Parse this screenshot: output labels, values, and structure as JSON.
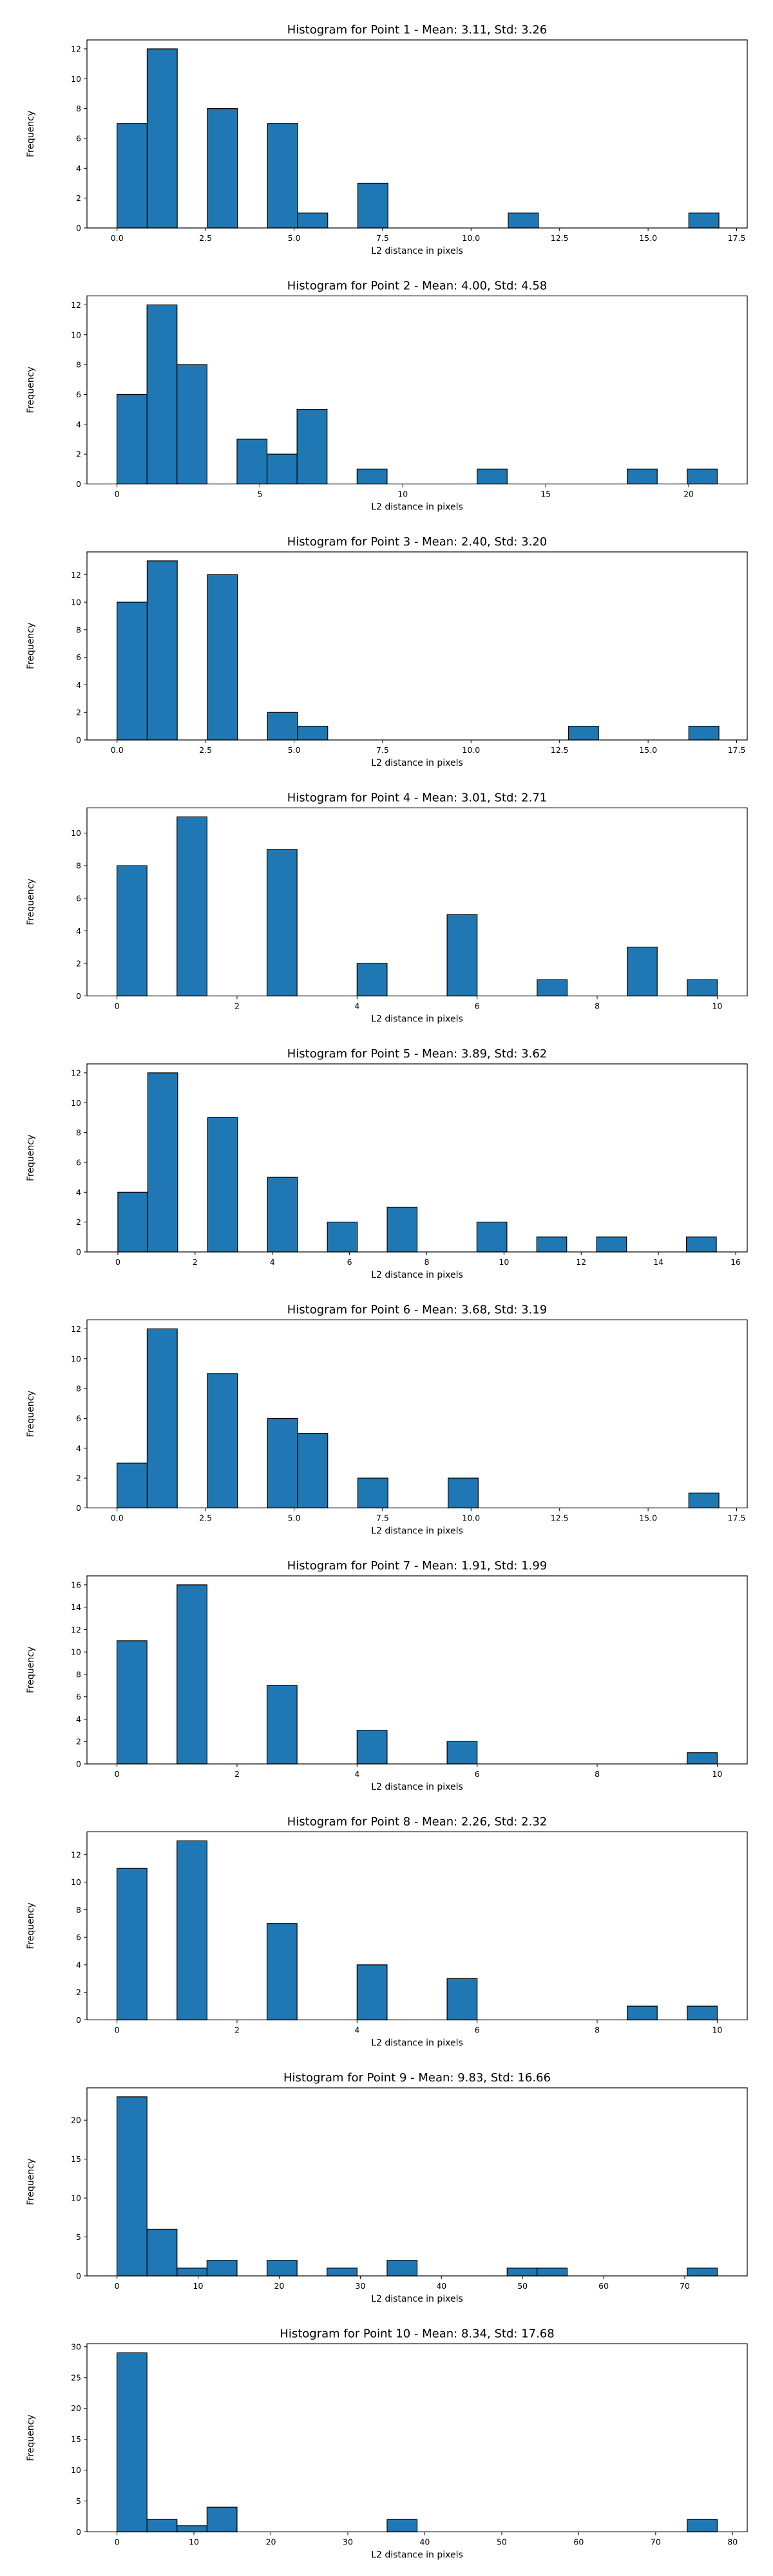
{
  "chart_data": [
    {
      "type": "bar",
      "title": "Histogram for Point 1 - Mean: 3.11, Std: 3.26",
      "xlabel": "L2 distance in pixels",
      "ylabel": "Frequency",
      "xlim": [
        -0.85,
        17.8
      ],
      "ylim": [
        0,
        12.6
      ],
      "xticks": [
        "0.0",
        "2.5",
        "5.0",
        "7.5",
        "10.0",
        "12.5",
        "15.0",
        "17.5"
      ],
      "xtick_values": [
        0,
        2.5,
        5,
        7.5,
        10,
        12.5,
        15,
        17.5
      ],
      "yticks": [
        0,
        2,
        4,
        6,
        8,
        10,
        12
      ],
      "bin_start": 0,
      "bin_width": 0.85,
      "counts": [
        7,
        12,
        0,
        8,
        0,
        7,
        1,
        0,
        3,
        0,
        0,
        0,
        0,
        1,
        0,
        0,
        0,
        0,
        0,
        1
      ]
    },
    {
      "type": "bar",
      "title": "Histogram for Point 2 - Mean: 4.00, Std: 4.58",
      "xlabel": "L2 distance in pixels",
      "ylabel": "Frequency",
      "xlim": [
        -1.05,
        22.05
      ],
      "ylim": [
        0,
        12.6
      ],
      "xticks": [
        "0",
        "5",
        "10",
        "15",
        "20"
      ],
      "xtick_values": [
        0,
        5,
        10,
        15,
        20
      ],
      "yticks": [
        0,
        2,
        4,
        6,
        8,
        10,
        12
      ],
      "bin_start": 0,
      "bin_width": 1.05,
      "counts": [
        6,
        12,
        8,
        0,
        3,
        2,
        5,
        0,
        1,
        0,
        0,
        0,
        1,
        0,
        0,
        0,
        0,
        1,
        0,
        1
      ]
    },
    {
      "type": "bar",
      "title": "Histogram for Point 3 - Mean: 2.40, Std: 3.20",
      "xlabel": "L2 distance in pixels",
      "ylabel": "Frequency",
      "xlim": [
        -0.85,
        17.8
      ],
      "ylim": [
        0,
        13.65
      ],
      "xticks": [
        "0.0",
        "2.5",
        "5.0",
        "7.5",
        "10.0",
        "12.5",
        "15.0",
        "17.5"
      ],
      "xtick_values": [
        0,
        2.5,
        5,
        7.5,
        10,
        12.5,
        15,
        17.5
      ],
      "yticks": [
        0,
        2,
        4,
        6,
        8,
        10,
        12
      ],
      "bin_start": 0,
      "bin_width": 0.85,
      "counts": [
        10,
        13,
        0,
        12,
        0,
        2,
        1,
        0,
        0,
        0,
        0,
        0,
        0,
        0,
        0,
        1,
        0,
        0,
        0,
        1
      ]
    },
    {
      "type": "bar",
      "title": "Histogram for Point 4 - Mean: 3.01, Std: 2.71",
      "xlabel": "L2 distance in pixels",
      "ylabel": "Frequency",
      "xlim": [
        -0.5,
        10.5
      ],
      "ylim": [
        0,
        11.55
      ],
      "xticks": [
        "0",
        "2",
        "4",
        "6",
        "8",
        "10"
      ],
      "xtick_values": [
        0,
        2,
        4,
        6,
        8,
        10
      ],
      "yticks": [
        0,
        2,
        4,
        6,
        8,
        10
      ],
      "bin_start": 0,
      "bin_width": 0.5,
      "counts": [
        8,
        0,
        11,
        0,
        0,
        9,
        0,
        0,
        2,
        0,
        0,
        5,
        0,
        0,
        1,
        0,
        0,
        3,
        0,
        1
      ]
    },
    {
      "type": "bar",
      "title": "Histogram for Point 5 - Mean: 3.89, Std: 3.62",
      "xlabel": "L2 distance in pixels",
      "ylabel": "Frequency",
      "xlim": [
        -0.8,
        16.3
      ],
      "ylim": [
        0,
        12.6
      ],
      "xticks": [
        "0",
        "2",
        "4",
        "6",
        "8",
        "10",
        "12",
        "14",
        "16"
      ],
      "xtick_values": [
        0,
        2,
        4,
        6,
        8,
        10,
        12,
        14,
        16
      ],
      "yticks": [
        0,
        2,
        4,
        6,
        8,
        10,
        12
      ],
      "bin_start": 0,
      "bin_width": 0.775,
      "counts": [
        4,
        12,
        0,
        9,
        0,
        5,
        0,
        2,
        0,
        3,
        0,
        0,
        2,
        0,
        1,
        0,
        1,
        0,
        0,
        1
      ]
    },
    {
      "type": "bar",
      "title": "Histogram for Point 6 - Mean: 3.68, Std: 3.19",
      "xlabel": "L2 distance in pixels",
      "ylabel": "Frequency",
      "xlim": [
        -0.85,
        17.8
      ],
      "ylim": [
        0,
        12.6
      ],
      "xticks": [
        "0.0",
        "2.5",
        "5.0",
        "7.5",
        "10.0",
        "12.5",
        "15.0",
        "17.5"
      ],
      "xtick_values": [
        0,
        2.5,
        5,
        7.5,
        10,
        12.5,
        15,
        17.5
      ],
      "yticks": [
        0,
        2,
        4,
        6,
        8,
        10,
        12
      ],
      "bin_start": 0,
      "bin_width": 0.85,
      "counts": [
        3,
        12,
        0,
        9,
        0,
        6,
        5,
        0,
        2,
        0,
        0,
        2,
        0,
        0,
        0,
        0,
        0,
        0,
        0,
        1
      ]
    },
    {
      "type": "bar",
      "title": "Histogram for Point 7 - Mean: 1.91, Std: 1.99",
      "xlabel": "L2 distance in pixels",
      "ylabel": "Frequency",
      "xlim": [
        -0.5,
        10.5
      ],
      "ylim": [
        0,
        16.8
      ],
      "xticks": [
        "0",
        "2",
        "4",
        "6",
        "8",
        "10"
      ],
      "xtick_values": [
        0,
        2,
        4,
        6,
        8,
        10
      ],
      "yticks": [
        0,
        2,
        4,
        6,
        8,
        10,
        12,
        14,
        16
      ],
      "bin_start": 0,
      "bin_width": 0.5,
      "counts": [
        11,
        0,
        16,
        0,
        0,
        7,
        0,
        0,
        3,
        0,
        0,
        2,
        0,
        0,
        0,
        0,
        0,
        0,
        0,
        1
      ]
    },
    {
      "type": "bar",
      "title": "Histogram for Point 8 - Mean: 2.26, Std: 2.32",
      "xlabel": "L2 distance in pixels",
      "ylabel": "Frequency",
      "xlim": [
        -0.5,
        10.5
      ],
      "ylim": [
        0,
        13.65
      ],
      "xticks": [
        "0",
        "2",
        "4",
        "6",
        "8",
        "10"
      ],
      "xtick_values": [
        0,
        2,
        4,
        6,
        8,
        10
      ],
      "yticks": [
        0,
        2,
        4,
        6,
        8,
        10,
        12
      ],
      "bin_start": 0,
      "bin_width": 0.5,
      "counts": [
        11,
        0,
        13,
        0,
        0,
        7,
        0,
        0,
        4,
        0,
        0,
        3,
        0,
        0,
        0,
        0,
        0,
        1,
        0,
        1
      ]
    },
    {
      "type": "bar",
      "title": "Histogram for Point 9 - Mean: 9.83, Std: 16.66",
      "xlabel": "L2 distance in pixels",
      "ylabel": "Frequency",
      "xlim": [
        -3.7,
        77.7
      ],
      "ylim": [
        0,
        24.15
      ],
      "xticks": [
        "0",
        "10",
        "20",
        "30",
        "40",
        "50",
        "60",
        "70"
      ],
      "xtick_values": [
        0,
        10,
        20,
        30,
        40,
        50,
        60,
        70
      ],
      "yticks": [
        0,
        5,
        10,
        15,
        20
      ],
      "bin_start": 0,
      "bin_width": 3.7,
      "counts": [
        23,
        6,
        1,
        2,
        0,
        2,
        0,
        1,
        0,
        2,
        0,
        0,
        0,
        1,
        1,
        0,
        0,
        0,
        0,
        1
      ]
    },
    {
      "type": "bar",
      "title": "Histogram for Point 10 - Mean: 8.34, Std: 17.68",
      "xlabel": "L2 distance in pixels",
      "ylabel": "Frequency",
      "xlim": [
        -3.9,
        81.9
      ],
      "ylim": [
        0,
        30.45
      ],
      "xticks": [
        "0",
        "10",
        "20",
        "30",
        "40",
        "50",
        "60",
        "70",
        "80"
      ],
      "xtick_values": [
        0,
        10,
        20,
        30,
        40,
        50,
        60,
        70,
        80
      ],
      "yticks": [
        0,
        5,
        10,
        15,
        20,
        25,
        30
      ],
      "bin_start": 0,
      "bin_width": 3.9,
      "counts": [
        29,
        2,
        1,
        4,
        0,
        0,
        0,
        0,
        0,
        2,
        0,
        0,
        0,
        0,
        0,
        0,
        0,
        0,
        0,
        2
      ]
    }
  ],
  "colors": {
    "bar_fill": "#1f77b4",
    "bar_edge": "#000000"
  }
}
